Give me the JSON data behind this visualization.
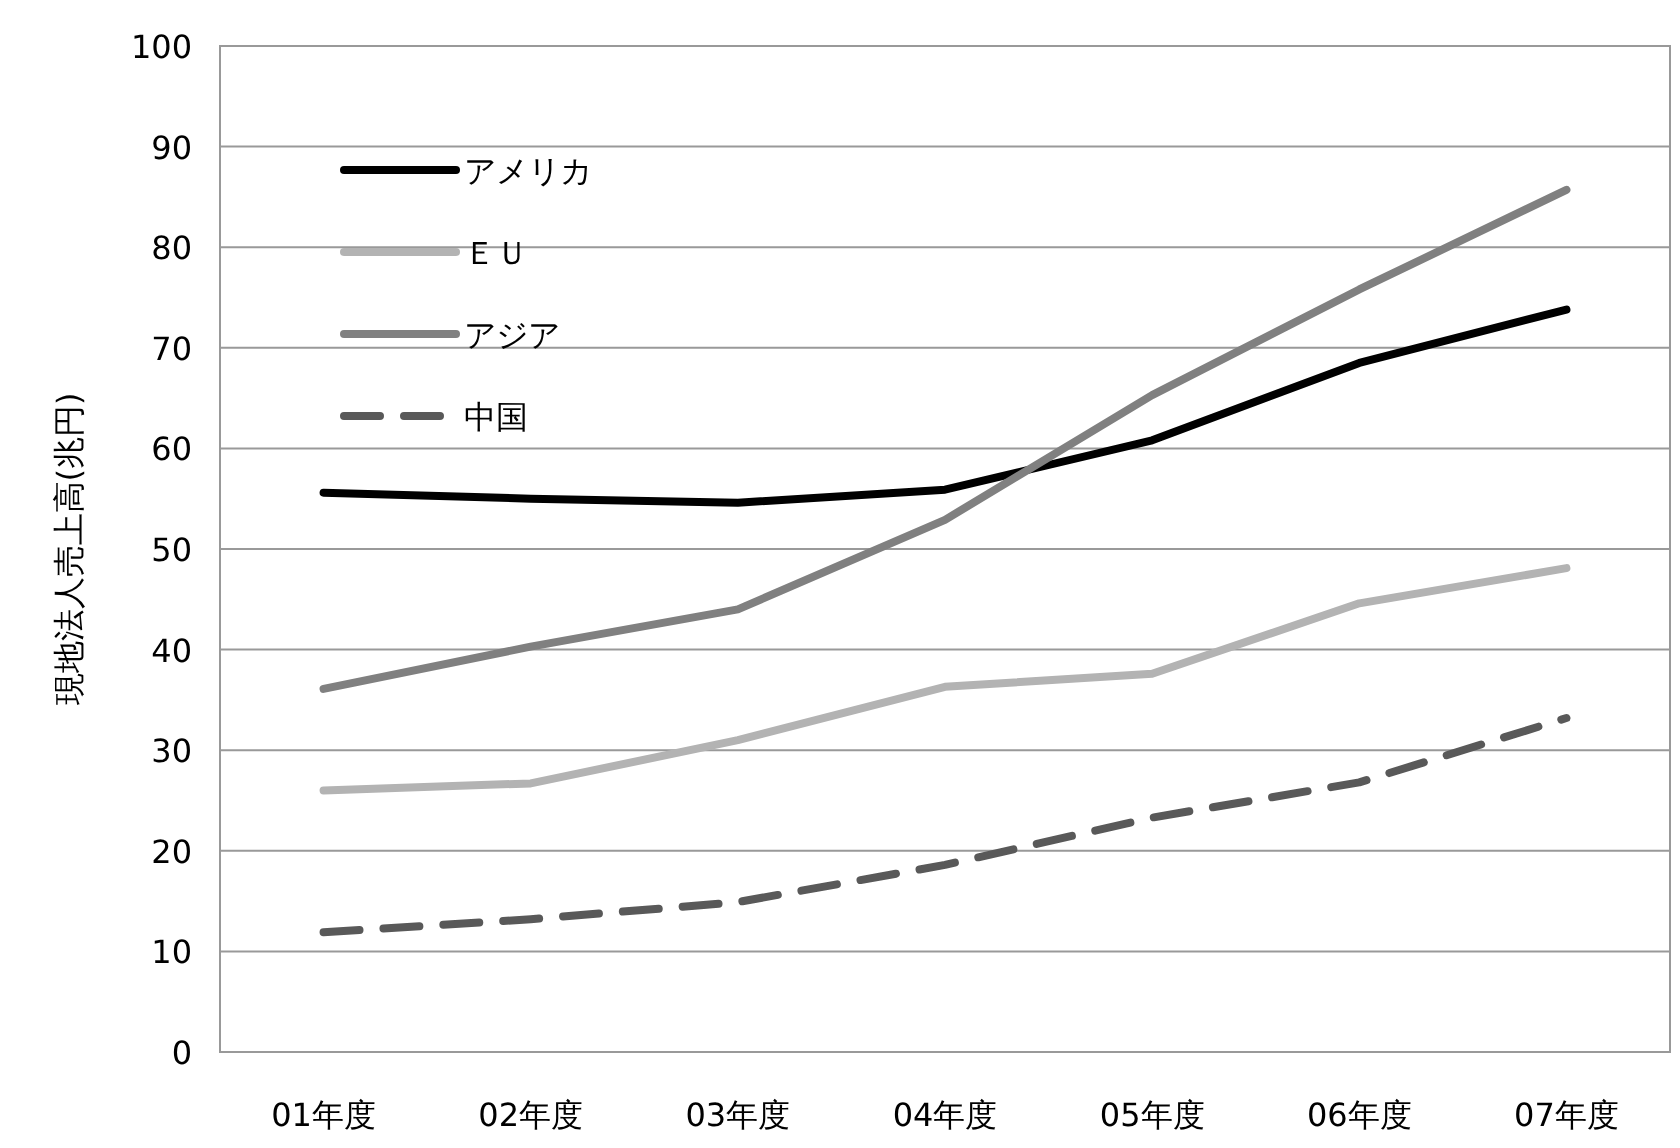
{
  "chart_data": {
    "type": "line",
    "ylabel": "現地法人売上高(兆円)",
    "categories": [
      "01年度",
      "02年度",
      "03年度",
      "04年度",
      "05年度",
      "06年度",
      "07年度"
    ],
    "series": [
      {
        "name": "アメリカ",
        "color": "#000000",
        "values": [
          55.6,
          55.0,
          54.6,
          55.9,
          60.8,
          68.5,
          73.8
        ]
      },
      {
        "name": "ＥＵ",
        "color": "#b3b3b3",
        "values": [
          26.0,
          26.7,
          31.0,
          36.3,
          37.6,
          44.6,
          48.1
        ]
      },
      {
        "name": "アジア",
        "color": "#808080",
        "values": [
          36.1,
          40.3,
          44.0,
          52.9,
          65.3,
          75.8,
          85.7
        ]
      },
      {
        "name": "中国",
        "color": "#595959",
        "line_style": "dashed",
        "values": [
          11.9,
          13.2,
          14.9,
          18.6,
          23.3,
          26.8,
          33.2
        ]
      }
    ],
    "ylim": [
      0,
      100
    ],
    "yticks": [
      0,
      10,
      20,
      30,
      40,
      50,
      60,
      70,
      80,
      90,
      100
    ],
    "grid": "y",
    "legend": "top left",
    "marker": "none"
  }
}
